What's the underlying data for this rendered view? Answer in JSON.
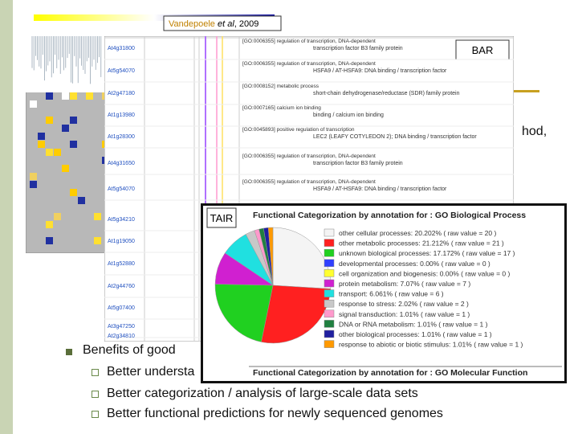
{
  "slide": {
    "fragment": "hod,",
    "bullet": "Benefits of good",
    "subbullets": [
      "Better understa",
      "Better categorization / analysis of large-scale data sets",
      "Better functional predictions for newly sequenced genomes"
    ]
  },
  "heatmap": {
    "author": "Vandepoele",
    "etal": "et al",
    "year": ", 2009"
  },
  "bar": {
    "label": "BAR",
    "rows": [
      {
        "id": "At4g31800",
        "go": "[GO:0006355] regulation of transcription, DNA-dependent",
        "description": "transcription factor B3 family protein"
      },
      {
        "id": "At5g54070",
        "go": "[GO:0006355] regulation of transcription, DNA-dependent",
        "description": "HSFA9 / AT-HSFA9: DNA binding / transcription factor"
      },
      {
        "id": "At2g47180",
        "go": "[GO:0008152] metabolic process",
        "description": "short-chain dehydrogenase/reductase (SDR) family protein"
      },
      {
        "id": "At1g13980",
        "go": "[GO:0007165] calcium ion binding",
        "description": "binding / calcium ion binding"
      },
      {
        "id": "At1g28300",
        "go": "[GO:0045893] positive regulation of transcription",
        "description": "LEC2 (LEAFY COTYLEDON 2); DNA binding / transcription factor"
      },
      {
        "id": "At4g31650",
        "go": "[GO:0006355] regulation of transcription, DNA-dependent",
        "description": "transcription factor B3 family protein"
      },
      {
        "id": "At5g54070",
        "go": "[GO:0006355] regulation of transcription, DNA-dependent",
        "description": "HSFA9 / AT-HSFA9: DNA binding / transcription factor"
      },
      {
        "id": "At5g34210",
        "go": "",
        "description": ""
      },
      {
        "id": "At1g19050",
        "go": "",
        "description": ""
      },
      {
        "id": "At1g52880",
        "go": "",
        "description": ""
      },
      {
        "id": "At2g44760",
        "go": "",
        "description": ""
      },
      {
        "id": "At5g07400",
        "go": "",
        "description": ""
      },
      {
        "id": "At3g47250",
        "go": "",
        "description": ""
      },
      {
        "id": "At2g34810",
        "go": "",
        "description": ""
      }
    ]
  },
  "tair": {
    "label": "TAIR",
    "subtitle": "Functional Categorization by annotation for : GO Molecular Function"
  },
  "chart_data": {
    "type": "pie",
    "title": "Functional Categorization by annotation for : GO Biological Process",
    "labels": [
      "other cellular processes: 20.202% ( raw value = 20 )",
      "other metabolic processes: 21.212% ( raw value = 21 )",
      "unknown biological processes: 17.172% ( raw value = 17 )",
      "developmental processes: 0.00% ( raw value = 0 )",
      "cell organization and biogenesis: 0.00% ( raw value = 0 )",
      "protein metabolism: 7.07% ( raw value = 7 )",
      "transport: 6.061% ( raw value = 6 )",
      "response to stress: 2.02% ( raw value = 2 )",
      "signal transduction: 1.01% ( raw value = 1 )",
      "DNA or RNA metabolism: 1.01% ( raw value = 1 )",
      "other biological processes: 1.01% ( raw value = 1 )",
      "response to abiotic or biotic stimulus: 1.01% ( raw value = 1 )"
    ],
    "values": [
      20.202,
      21.212,
      17.172,
      0,
      0,
      7.07,
      6.061,
      2.02,
      1.01,
      1.01,
      1.01,
      1.01
    ],
    "colors": [
      "#f4f4f4",
      "#ff2020",
      "#20d020",
      "#3040ff",
      "#ffff30",
      "#d020d0",
      "#20e0e0",
      "#c8c8c8",
      "#ff99cc",
      "#208040",
      "#2020a0",
      "#ff9900"
    ]
  }
}
